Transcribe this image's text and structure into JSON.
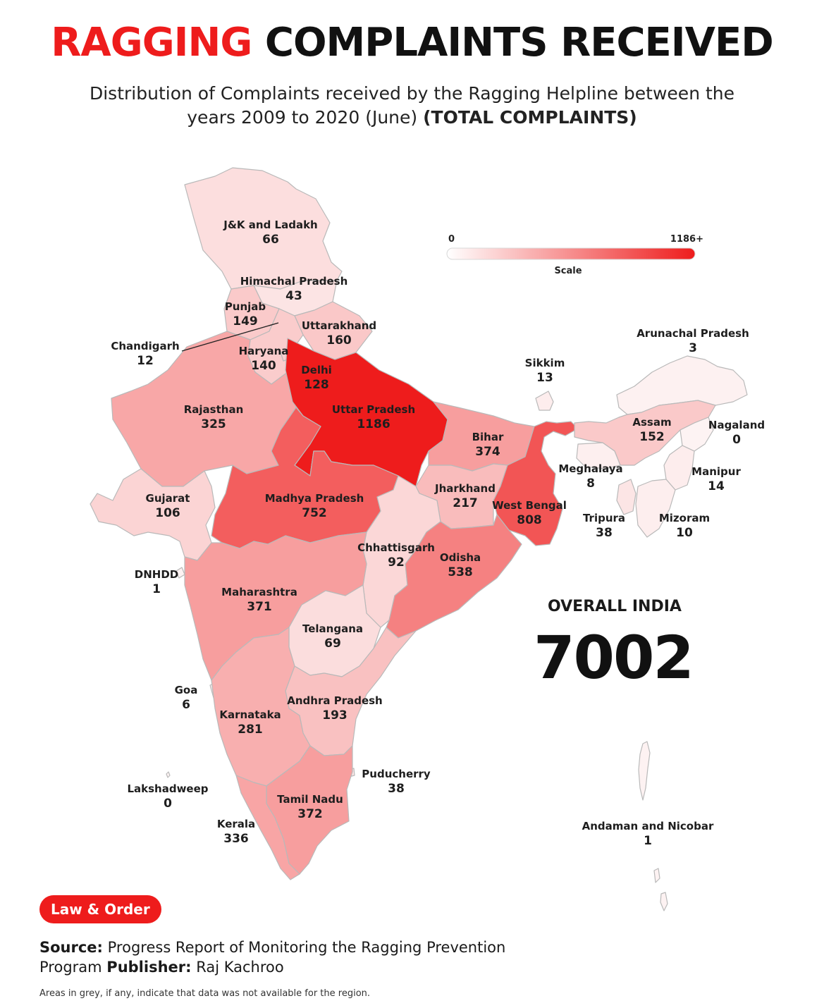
{
  "title": {
    "highlight": "RAGGING",
    "rest": "COMPLAINTS RECEIVED"
  },
  "subtitle": {
    "text": "Distribution of Complaints received by the Ragging Helpline between the years 2009 to 2020 (June)",
    "bold": "(TOTAL COMPLAINTS)"
  },
  "scale": {
    "min_label": "0",
    "max_label": "1186+",
    "caption": "Scale",
    "color_low": "#ffffff",
    "color_high": "#ee1c1c"
  },
  "regions": [
    {
      "name": "J&K and Ladakh",
      "value": 66
    },
    {
      "name": "Himachal Pradesh",
      "value": 43
    },
    {
      "name": "Punjab",
      "value": 149
    },
    {
      "name": "Chandigarh",
      "value": 12
    },
    {
      "name": "Uttarakhand",
      "value": 160
    },
    {
      "name": "Haryana",
      "value": 140
    },
    {
      "name": "Delhi",
      "value": 128
    },
    {
      "name": "Rajasthan",
      "value": 325
    },
    {
      "name": "Uttar Pradesh",
      "value": 1186
    },
    {
      "name": "Bihar",
      "value": 374
    },
    {
      "name": "Gujarat",
      "value": 106
    },
    {
      "name": "Madhya Pradesh",
      "value": 752
    },
    {
      "name": "Jharkhand",
      "value": 217
    },
    {
      "name": "West Bengal",
      "value": 808
    },
    {
      "name": "Chhattisgarh",
      "value": 92
    },
    {
      "name": "Odisha",
      "value": 538
    },
    {
      "name": "DNHDD",
      "value": 1
    },
    {
      "name": "Maharashtra",
      "value": 371
    },
    {
      "name": "Telangana",
      "value": 69
    },
    {
      "name": "Goa",
      "value": 6
    },
    {
      "name": "Andhra Pradesh",
      "value": 193
    },
    {
      "name": "Karnataka",
      "value": 281
    },
    {
      "name": "Puducherry",
      "value": 38
    },
    {
      "name": "Lakshadweep",
      "value": 0
    },
    {
      "name": "Tamil Nadu",
      "value": 372
    },
    {
      "name": "Kerala",
      "value": 336
    },
    {
      "name": "Sikkim",
      "value": 13
    },
    {
      "name": "Arunachal Pradesh",
      "value": 3
    },
    {
      "name": "Assam",
      "value": 152
    },
    {
      "name": "Nagaland",
      "value": 0
    },
    {
      "name": "Meghalaya",
      "value": 8
    },
    {
      "name": "Manipur",
      "value": 14
    },
    {
      "name": "Tripura",
      "value": 38
    },
    {
      "name": "Mizoram",
      "value": 10
    },
    {
      "name": "Andaman and Nicobar",
      "value": 1
    }
  ],
  "overall": {
    "label": "OVERALL INDIA",
    "value": "7002"
  },
  "badge": "Law & Order",
  "source": {
    "source_label": "Source:",
    "source_text": "Progress Report of Monitoring the Ragging Prevention Program",
    "publisher_label": "Publisher:",
    "publisher_text": "Raj Kachroo"
  },
  "footnote": "Areas in grey, if any, indicate that data was not available for the region."
}
